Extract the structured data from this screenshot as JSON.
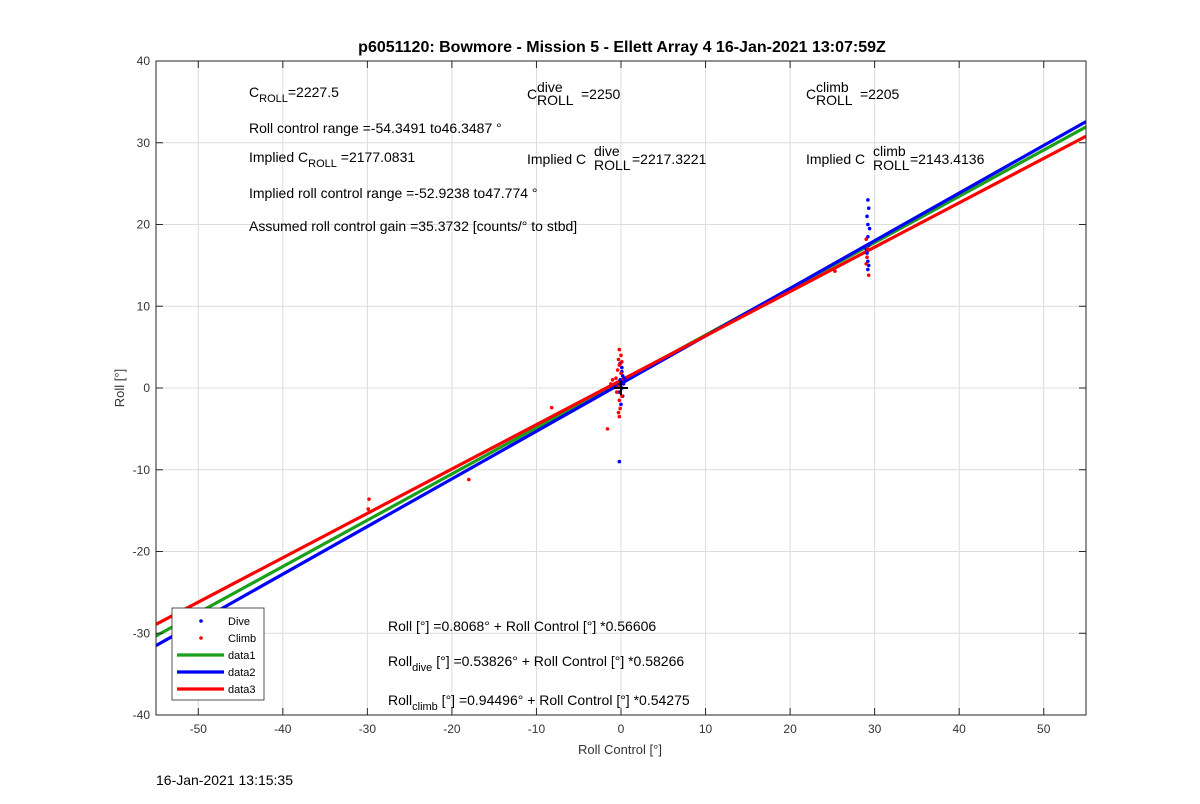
{
  "chart_data": {
    "type": "scatter",
    "title": "p6051120: Bowmore - Mission 5 - Ellett Array 4 16-Jan-2021 13:07:59Z",
    "xlabel": "Roll Control [°]",
    "ylabel": "Roll [°]",
    "xlim": [
      -55,
      55
    ],
    "ylim": [
      -40,
      40
    ],
    "xticks": [
      "-50",
      "-40",
      "-30",
      "-20",
      "-10",
      "0",
      "10",
      "20",
      "30",
      "40",
      "50"
    ],
    "yticks": [
      "-40",
      "-30",
      "-20",
      "-10",
      "0",
      "10",
      "20",
      "30",
      "40"
    ],
    "grid": true,
    "legend_position": "bottom-left",
    "legend": [
      {
        "label": "Dive",
        "kind": "marker",
        "color": "#0000ff"
      },
      {
        "label": "Climb",
        "kind": "marker",
        "color": "#ff0000"
      },
      {
        "label": "data1",
        "kind": "line",
        "color": "#1aa01a"
      },
      {
        "label": "data2",
        "kind": "line",
        "color": "#0000ff"
      },
      {
        "label": "data3",
        "kind": "line",
        "color": "#ff0000"
      }
    ],
    "series": [
      {
        "name": "Dive",
        "color": "#0000ff",
        "points": [
          [
            0.1,
            2.0
          ],
          [
            0.2,
            1.5
          ],
          [
            -0.1,
            1.0
          ],
          [
            0.3,
            0.5
          ],
          [
            0.1,
            0.0
          ],
          [
            -0.2,
            -0.5
          ],
          [
            0.2,
            -1.0
          ],
          [
            0.0,
            -2.0
          ],
          [
            -0.1,
            3.0
          ],
          [
            0.1,
            2.5
          ],
          [
            -0.2,
            -9.0
          ],
          [
            0.4,
            1.2
          ],
          [
            0.0,
            0.8
          ],
          [
            29.2,
            23.0
          ],
          [
            29.3,
            22.0
          ],
          [
            29.1,
            21.0
          ],
          [
            29.2,
            20.0
          ],
          [
            29.4,
            19.5
          ],
          [
            29.2,
            18.5
          ],
          [
            29.3,
            17.5
          ],
          [
            29.1,
            16.5
          ],
          [
            29.2,
            15.5
          ],
          [
            29.3,
            15.0
          ],
          [
            29.2,
            14.5
          ],
          [
            29.0,
            17.0
          ]
        ]
      },
      {
        "name": "Climb",
        "color": "#ff0000",
        "points": [
          [
            -0.2,
            4.7
          ],
          [
            0.0,
            4.0
          ],
          [
            -0.3,
            3.5
          ],
          [
            0.1,
            3.2
          ],
          [
            -0.2,
            2.8
          ],
          [
            -0.4,
            2.2
          ],
          [
            0.0,
            1.8
          ],
          [
            -0.6,
            1.2
          ],
          [
            -1.0,
            1.0
          ],
          [
            -1.2,
            0.5
          ],
          [
            -0.3,
            0.2
          ],
          [
            -0.5,
            -0.5
          ],
          [
            0.1,
            -1.0
          ],
          [
            -0.2,
            -1.5
          ],
          [
            -0.1,
            -2.5
          ],
          [
            -0.3,
            -3.0
          ],
          [
            -0.2,
            -3.5
          ],
          [
            -1.6,
            -5.0
          ],
          [
            -8.2,
            -2.4
          ],
          [
            -18.0,
            -11.2
          ],
          [
            -29.8,
            -13.6
          ],
          [
            -29.9,
            -14.8
          ],
          [
            -29.8,
            -15.2
          ],
          [
            25.3,
            14.3
          ],
          [
            29.0,
            18.2
          ],
          [
            29.2,
            17.0
          ],
          [
            29.3,
            13.8
          ],
          [
            29.1,
            16.0
          ],
          [
            29.0,
            15.2
          ]
        ]
      },
      {
        "name": "data1",
        "color": "#1aa01a",
        "style": "line",
        "intercept": 0.8068,
        "slope": 0.56606
      },
      {
        "name": "data2",
        "color": "#0000ff",
        "style": "line",
        "intercept": 0.53826,
        "slope": 0.58266
      },
      {
        "name": "data3",
        "color": "#ff0000",
        "style": "line",
        "intercept": 0.94496,
        "slope": 0.54275
      }
    ],
    "origin_marker": [
      0,
      0
    ]
  },
  "annotations": {
    "c_roll_base": "C",
    "c_roll_sub": "ROLL",
    "c_roll_val": "=2227.5",
    "c_dive_base": "C",
    "c_dive_sup": "dive",
    "c_dive_sub": "ROLL",
    "c_dive_val": "=2250",
    "c_climb_base": "C",
    "c_climb_sup": "climb",
    "c_climb_sub": "ROLL",
    "c_climb_val": "=2205",
    "roll_range": "Roll control range =-54.3491 to46.3487 °",
    "implied_prefix": "Implied C",
    "implied_sub": "ROLL",
    "implied_val": " =2177.0831",
    "implied_dive_prefix": "Implied C",
    "implied_dive_sup": "dive",
    "implied_dive_sub": "ROLL",
    "implied_dive_val": " =2217.3221",
    "implied_climb_prefix": "Implied C",
    "implied_climb_sup": "climb",
    "implied_climb_sub": "ROLL",
    "implied_climb_val": " =2143.4136",
    "implied_range": "Implied roll control range =-52.9238 to47.774 °",
    "gain": "Assumed roll control gain =35.3732 [counts/° to stbd]",
    "fit_all": "Roll [°] =0.8068° + Roll Control [°] *0.56606",
    "fit_dive_base": "Roll",
    "fit_dive_sub": "dive",
    "fit_dive_rest": " [°] =0.53826° + Roll Control [°] *0.58266",
    "fit_climb_base": "Roll",
    "fit_climb_sub": "climb",
    "fit_climb_rest": " [°] =0.94496° + Roll Control [°] *0.54275"
  },
  "footer": {
    "timestamp": "16-Jan-2021 13:15:35"
  }
}
